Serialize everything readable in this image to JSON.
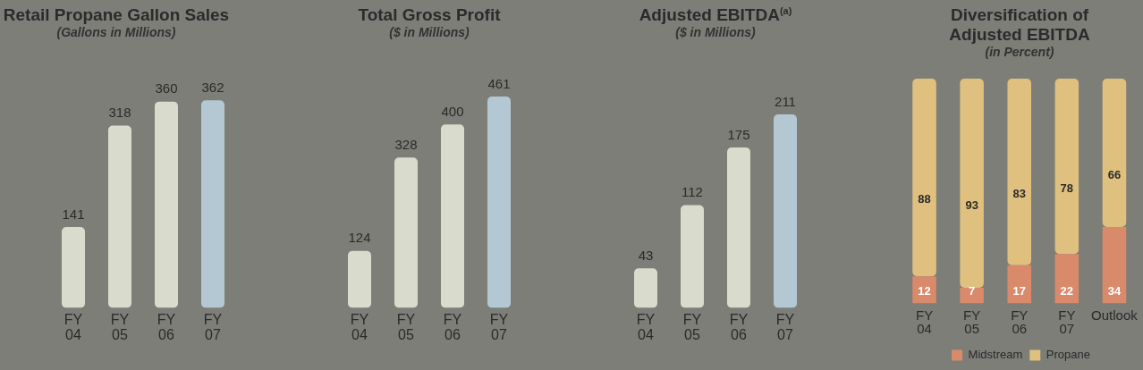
{
  "chart_data": [
    {
      "type": "bar",
      "title": "Retail Propane Gallon Sales",
      "subtitle": "(Gallons in Millions)",
      "categories": [
        "FY 04",
        "FY 05",
        "FY 06",
        "FY 07"
      ],
      "values": [
        141,
        318,
        360,
        362
      ],
      "colors": [
        "#d9dbcc",
        "#d9dbcc",
        "#d9dbcc",
        "#b4c8d4"
      ],
      "data_labels": true,
      "tick_labels": "x"
    },
    {
      "type": "bar",
      "title": "Total Gross Profit",
      "subtitle": "($ in Millions)",
      "categories": [
        "FY 04",
        "FY 05",
        "FY 06",
        "FY 07"
      ],
      "values": [
        124,
        328,
        400,
        461
      ],
      "colors": [
        "#d9dbcc",
        "#d9dbcc",
        "#d9dbcc",
        "#b4c8d4"
      ],
      "data_labels": true,
      "tick_labels": "x"
    },
    {
      "type": "bar",
      "title": "Adjusted EBITDA$^{(a)}$",
      "subtitle": "($ in Millions)",
      "categories": [
        "FY 04",
        "FY 05",
        "FY 06",
        "FY 07"
      ],
      "values": [
        43,
        112,
        175,
        211
      ],
      "colors": [
        "#d9dbcc",
        "#d9dbcc",
        "#d9dbcc",
        "#b4c8d4"
      ],
      "data_labels": true,
      "tick_labels": "x"
    },
    {
      "type": "bar",
      "title": "Diversification of Adjusted EBITDA",
      "subtitle": "(in Percent)",
      "categories": [
        "FY 04",
        "FY 05",
        "FY 06",
        "FY 07",
        "Outlook"
      ],
      "stacked": true,
      "series": [
        {
          "name": "Midstream",
          "color": "#d98a6a",
          "values": [
            12,
            7,
            17,
            22,
            34
          ]
        },
        {
          "name": "Propane",
          "color": "#dfc07e",
          "values": [
            88,
            93,
            83,
            78,
            66
          ]
        }
      ],
      "data_labels": true,
      "tick_labels": "x",
      "legend": "bottom"
    }
  ]
}
